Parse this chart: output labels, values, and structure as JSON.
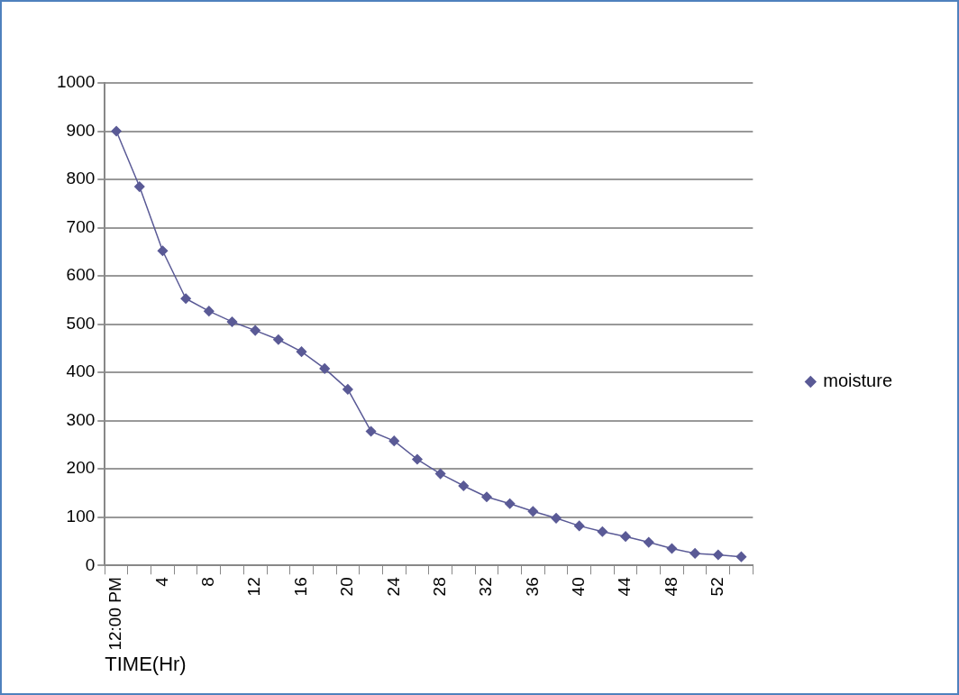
{
  "chart_data": {
    "type": "line",
    "xlabel": "TIME(Hr)",
    "categories": [
      "12:00 PM",
      null,
      "4",
      null,
      "8",
      null,
      "12",
      null,
      "16",
      null,
      "20",
      null,
      "24",
      null,
      "28",
      null,
      "32",
      null,
      "36",
      null,
      "40",
      null,
      "44",
      null,
      "48",
      null,
      "52",
      null
    ],
    "series": [
      {
        "name": "moisture",
        "color": "#5a5a96",
        "values": [
          900,
          785,
          652,
          553,
          527,
          505,
          487,
          468,
          443,
          408,
          365,
          278,
          258,
          220,
          190,
          165,
          142,
          128,
          112,
          98,
          82,
          70,
          60,
          48,
          35,
          25,
          22,
          18
        ]
      }
    ],
    "ylim": [
      0,
      1000
    ],
    "yticks": [
      0,
      100,
      200,
      300,
      400,
      500,
      600,
      700,
      800,
      900,
      1000
    ],
    "grid": "y",
    "legend": "right",
    "marker": "diamond",
    "line_style": "solid"
  }
}
